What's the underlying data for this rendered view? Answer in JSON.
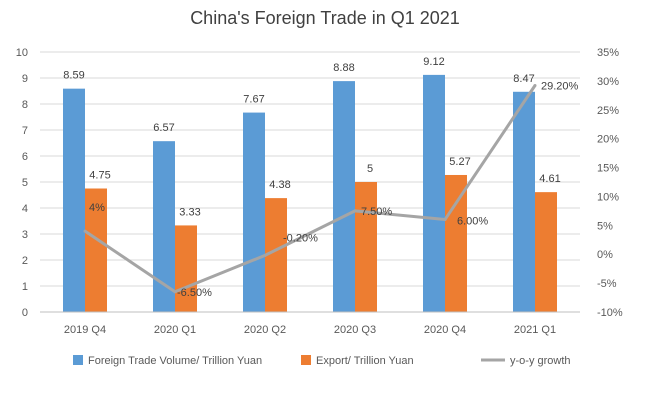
{
  "chart_data": {
    "type": "bar",
    "title": "China's Foreign Trade in Q1 2021",
    "categories": [
      "2019 Q4",
      "2020 Q1",
      "2020 Q2",
      "2020 Q3",
      "2020 Q4",
      "2021 Q1"
    ],
    "series": [
      {
        "name": "Foreign Trade Volume/ Trillion Yuan",
        "kind": "bar",
        "axis": "left",
        "color": "#5b9bd5",
        "values": [
          8.59,
          6.57,
          7.67,
          8.88,
          9.12,
          8.47
        ],
        "labels": [
          "8.59",
          "6.57",
          "7.67",
          "8.88",
          "9.12",
          "8.47"
        ]
      },
      {
        "name": "Export/ Trillion Yuan",
        "kind": "bar",
        "axis": "left",
        "color": "#ed7d31",
        "values": [
          4.75,
          3.33,
          4.38,
          5,
          5.27,
          4.61
        ],
        "labels": [
          "4.75",
          "3.33",
          "4.38",
          "5",
          "5.27",
          "4.61"
        ]
      },
      {
        "name": "y-o-y growth",
        "kind": "line",
        "axis": "right",
        "color": "#a5a5a5",
        "values": [
          4,
          -6.5,
          -0.2,
          7.5,
          6.0,
          29.2
        ],
        "labels": [
          "4%",
          "-6.50%",
          "-0.20%",
          "7.50%",
          "6.00%",
          "29.20%"
        ]
      }
    ],
    "y_left": {
      "min": 0,
      "max": 10,
      "ticks": [
        "0",
        "1",
        "2",
        "3",
        "4",
        "5",
        "6",
        "7",
        "8",
        "9",
        "10"
      ]
    },
    "y_right": {
      "min": -10,
      "max": 35,
      "ticks": [
        "-10%",
        "-5%",
        "0%",
        "5%",
        "10%",
        "15%",
        "20%",
        "25%",
        "30%",
        "35%"
      ]
    },
    "grid": true,
    "legend_position": "bottom"
  }
}
